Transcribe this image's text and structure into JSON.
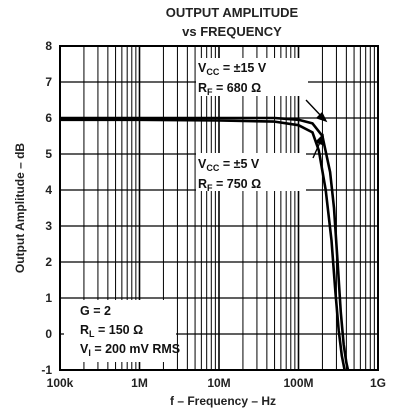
{
  "chart_data": {
    "type": "line",
    "title": "OUTPUT AMPLITUDE",
    "subtitle": "vs FREQUENCY",
    "xlabel": "f – Frequency – Hz",
    "ylabel": "Output Amplitude – dB",
    "x_scale": "log",
    "xlim": [
      100000,
      1000000000
    ],
    "ylim": [
      -1,
      8
    ],
    "x_tick_labels": [
      "100k",
      "1M",
      "10M",
      "100M",
      "1G"
    ],
    "x_tick_values": [
      100000,
      1000000,
      10000000,
      100000000,
      1000000000
    ],
    "y_ticks": [
      -1,
      0,
      1,
      2,
      3,
      4,
      5,
      6,
      7,
      8
    ],
    "grid": true,
    "series": [
      {
        "x": [
          100000,
          1000000,
          10000000,
          50000000,
          100000000,
          150000000,
          200000000,
          250000000,
          280000000,
          310000000,
          340000000,
          370000000,
          400000000,
          420000000
        ],
        "y": [
          6.0,
          6.0,
          6.0,
          6.0,
          5.95,
          5.85,
          5.5,
          4.5,
          3.5,
          2.0,
          0.6,
          -0.3,
          -0.8,
          -1.0
        ]
      },
      {
        "x": [
          100000,
          1000000,
          10000000,
          50000000,
          100000000,
          150000000,
          180000000,
          220000000,
          260000000,
          290000000,
          320000000,
          350000000,
          380000000
        ],
        "y": [
          5.95,
          5.95,
          5.93,
          5.9,
          5.8,
          5.6,
          5.1,
          4.0,
          2.6,
          1.2,
          0.1,
          -0.6,
          -1.0
        ]
      }
    ],
    "annotations": [
      {
        "line1_main": "V",
        "line1_sub": "CC",
        "line1_rest": " = ±15 V",
        "line2_main": "R",
        "line2_sub": "F",
        "line2_rest": " = 680 Ω"
      },
      {
        "line1_main": "V",
        "line1_sub": "CC",
        "line1_rest": " = ±5 V",
        "line2_main": "R",
        "line2_sub": "F",
        "line2_rest": " = 750 Ω"
      },
      {
        "line1": "G = 2",
        "line2_main": "R",
        "line2_sub": "L",
        "line2_rest": " = 150 Ω",
        "line3_main": "V",
        "line3_sub": "I",
        "line3_rest": " = 200 mV RMS"
      }
    ]
  }
}
